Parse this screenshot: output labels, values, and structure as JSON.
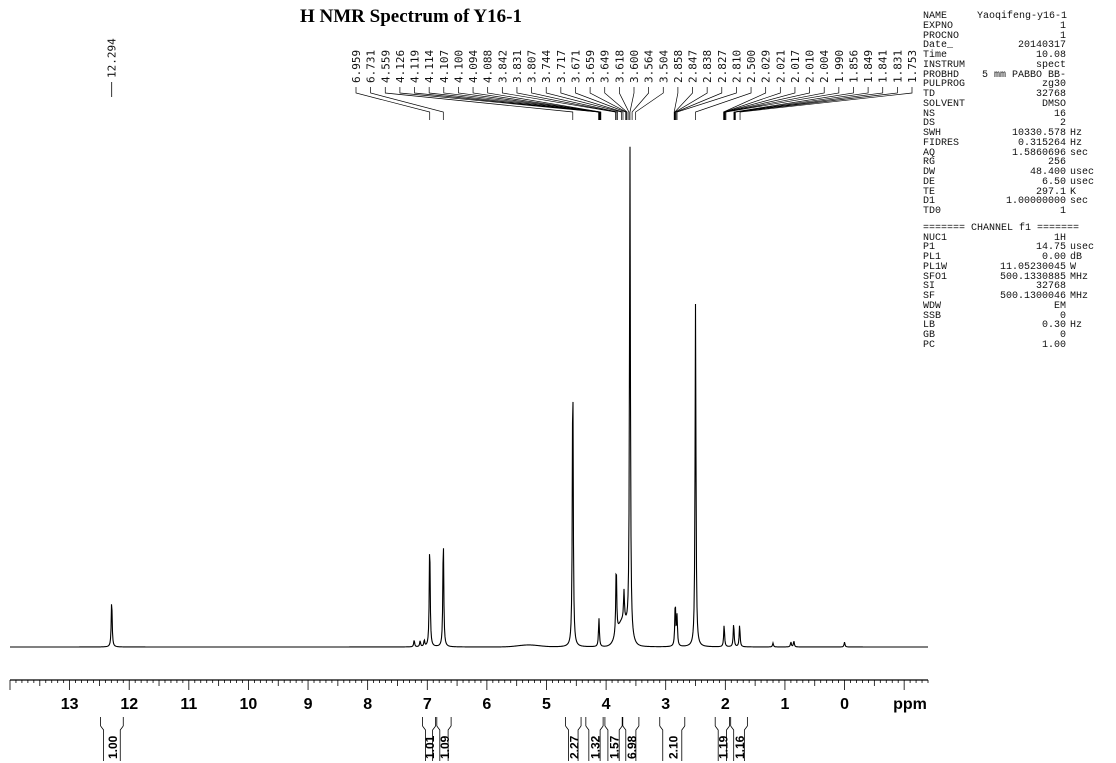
{
  "title": "H NMR Spectrum of Y16-1",
  "axis": {
    "unit_label": "ppm",
    "ticks": [
      "13",
      "12",
      "11",
      "10",
      "9",
      "8",
      "7",
      "6",
      "5",
      "4",
      "3",
      "2",
      "1",
      "0"
    ]
  },
  "params_top": [
    {
      "k": "NAME",
      "v": "Yaoqifeng-y16-1",
      "u": ""
    },
    {
      "k": "EXPNO",
      "v": "1",
      "u": ""
    },
    {
      "k": "PROCNO",
      "v": "1",
      "u": ""
    },
    {
      "k": "Date_",
      "v": "20140317",
      "u": ""
    },
    {
      "k": "Time",
      "v": "10.08",
      "u": ""
    },
    {
      "k": "INSTRUM",
      "v": "spect",
      "u": ""
    },
    {
      "k": "PROBHD",
      "v": "5 mm PABBO BB-",
      "u": ""
    },
    {
      "k": "PULPROG",
      "v": "zg30",
      "u": ""
    },
    {
      "k": "TD",
      "v": "32768",
      "u": ""
    },
    {
      "k": "SOLVENT",
      "v": "DMSO",
      "u": ""
    },
    {
      "k": "NS",
      "v": "16",
      "u": ""
    },
    {
      "k": "DS",
      "v": "2",
      "u": ""
    },
    {
      "k": "SWH",
      "v": "10330.578",
      "u": "Hz"
    },
    {
      "k": "FIDRES",
      "v": "0.315264",
      "u": "Hz"
    },
    {
      "k": "AQ",
      "v": "1.5860696",
      "u": "sec"
    },
    {
      "k": "RG",
      "v": "256",
      "u": ""
    },
    {
      "k": "DW",
      "v": "48.400",
      "u": "usec"
    },
    {
      "k": "DE",
      "v": "6.50",
      "u": "usec"
    },
    {
      "k": "TE",
      "v": "297.1",
      "u": "K"
    },
    {
      "k": "D1",
      "v": "1.00000000",
      "u": "sec"
    },
    {
      "k": "TD0",
      "v": "1",
      "u": ""
    }
  ],
  "channel_header": "======= CHANNEL f1 =======",
  "params_bottom": [
    {
      "k": "NUC1",
      "v": "1H",
      "u": ""
    },
    {
      "k": "P1",
      "v": "14.75",
      "u": "usec"
    },
    {
      "k": "PL1",
      "v": "0.00",
      "u": "dB"
    },
    {
      "k": "PL1W",
      "v": "11.05230045",
      "u": "W"
    },
    {
      "k": "SFO1",
      "v": "500.1330885",
      "u": "MHz"
    },
    {
      "k": "SI",
      "v": "32768",
      "u": ""
    },
    {
      "k": "SF",
      "v": "500.1300046",
      "u": "MHz"
    },
    {
      "k": "WDW",
      "v": "EM",
      "u": ""
    },
    {
      "k": "SSB",
      "v": "0",
      "u": ""
    },
    {
      "k": "LB",
      "v": "0.30",
      "u": "Hz"
    },
    {
      "k": "GB",
      "v": "0",
      "u": ""
    },
    {
      "k": "PC",
      "v": "1.00",
      "u": ""
    }
  ],
  "chart_data": {
    "type": "line",
    "title": "H NMR Spectrum of Y16-1",
    "xlabel": "ppm",
    "ylabel": "",
    "xlim": [
      14.0,
      -1.4
    ],
    "x_reversed": true,
    "grid": false,
    "peaks": [
      {
        "ppm": 12.294,
        "h": 0.098
      },
      {
        "ppm": 7.22,
        "h": 0.014
      },
      {
        "ppm": 7.12,
        "h": 0.012
      },
      {
        "ppm": 7.05,
        "h": 0.013
      },
      {
        "ppm": 6.959,
        "h": 0.218
      },
      {
        "ppm": 6.731,
        "h": 0.225
      },
      {
        "ppm": 4.559,
        "h": 0.578
      },
      {
        "ppm": 4.12,
        "h": 0.058
      },
      {
        "ppm": 3.83,
        "h": 0.146
      },
      {
        "ppm": 3.7,
        "h": 0.06
      },
      {
        "ppm": 3.6,
        "h": 1.0
      },
      {
        "ppm": 2.84,
        "h": 0.09
      },
      {
        "ppm": 2.81,
        "h": 0.06
      },
      {
        "ppm": 2.5,
        "h": 0.695
      },
      {
        "ppm": 2.02,
        "h": 0.045
      },
      {
        "ppm": 1.86,
        "h": 0.048
      },
      {
        "ppm": 1.76,
        "h": 0.045
      },
      {
        "ppm": 1.2,
        "h": 0.008
      },
      {
        "ppm": 0.9,
        "h": 0.01
      },
      {
        "ppm": 0.85,
        "h": 0.012
      },
      {
        "ppm": 0.0,
        "h": 0.01
      }
    ],
    "peak_labels": [
      "12.294",
      "6.959",
      "6.731",
      "4.559",
      "4.126",
      "4.119",
      "4.114",
      "4.107",
      "4.100",
      "4.094",
      "4.088",
      "3.842",
      "3.831",
      "3.807",
      "3.744",
      "3.717",
      "3.671",
      "3.659",
      "3.649",
      "3.618",
      "3.600",
      "3.564",
      "3.504",
      "2.858",
      "2.847",
      "2.838",
      "2.827",
      "2.810",
      "2.500",
      "2.029",
      "2.021",
      "2.017",
      "2.010",
      "2.004",
      "1.990",
      "1.856",
      "1.849",
      "1.841",
      "1.831",
      "1.753"
    ],
    "integrals": [
      {
        "x": [
          12.48,
          12.1
        ],
        "value": "1.00"
      },
      {
        "x": [
          7.08,
          6.86
        ],
        "value": "1.01"
      },
      {
        "x": [
          6.84,
          6.6
        ],
        "value": "1.09"
      },
      {
        "x": [
          4.68,
          4.42
        ],
        "value": "2.27"
      },
      {
        "x": [
          4.34,
          4.05
        ],
        "value": "1.32"
      },
      {
        "x": [
          4.02,
          3.73
        ],
        "value": "1.57"
      },
      {
        "x": [
          3.72,
          3.45
        ],
        "value": "6.98"
      },
      {
        "x": [
          3.1,
          2.68
        ],
        "value": "2.10"
      },
      {
        "x": [
          2.17,
          1.93
        ],
        "value": "1.19"
      },
      {
        "x": [
          1.91,
          1.63
        ],
        "value": "1.16"
      }
    ]
  }
}
